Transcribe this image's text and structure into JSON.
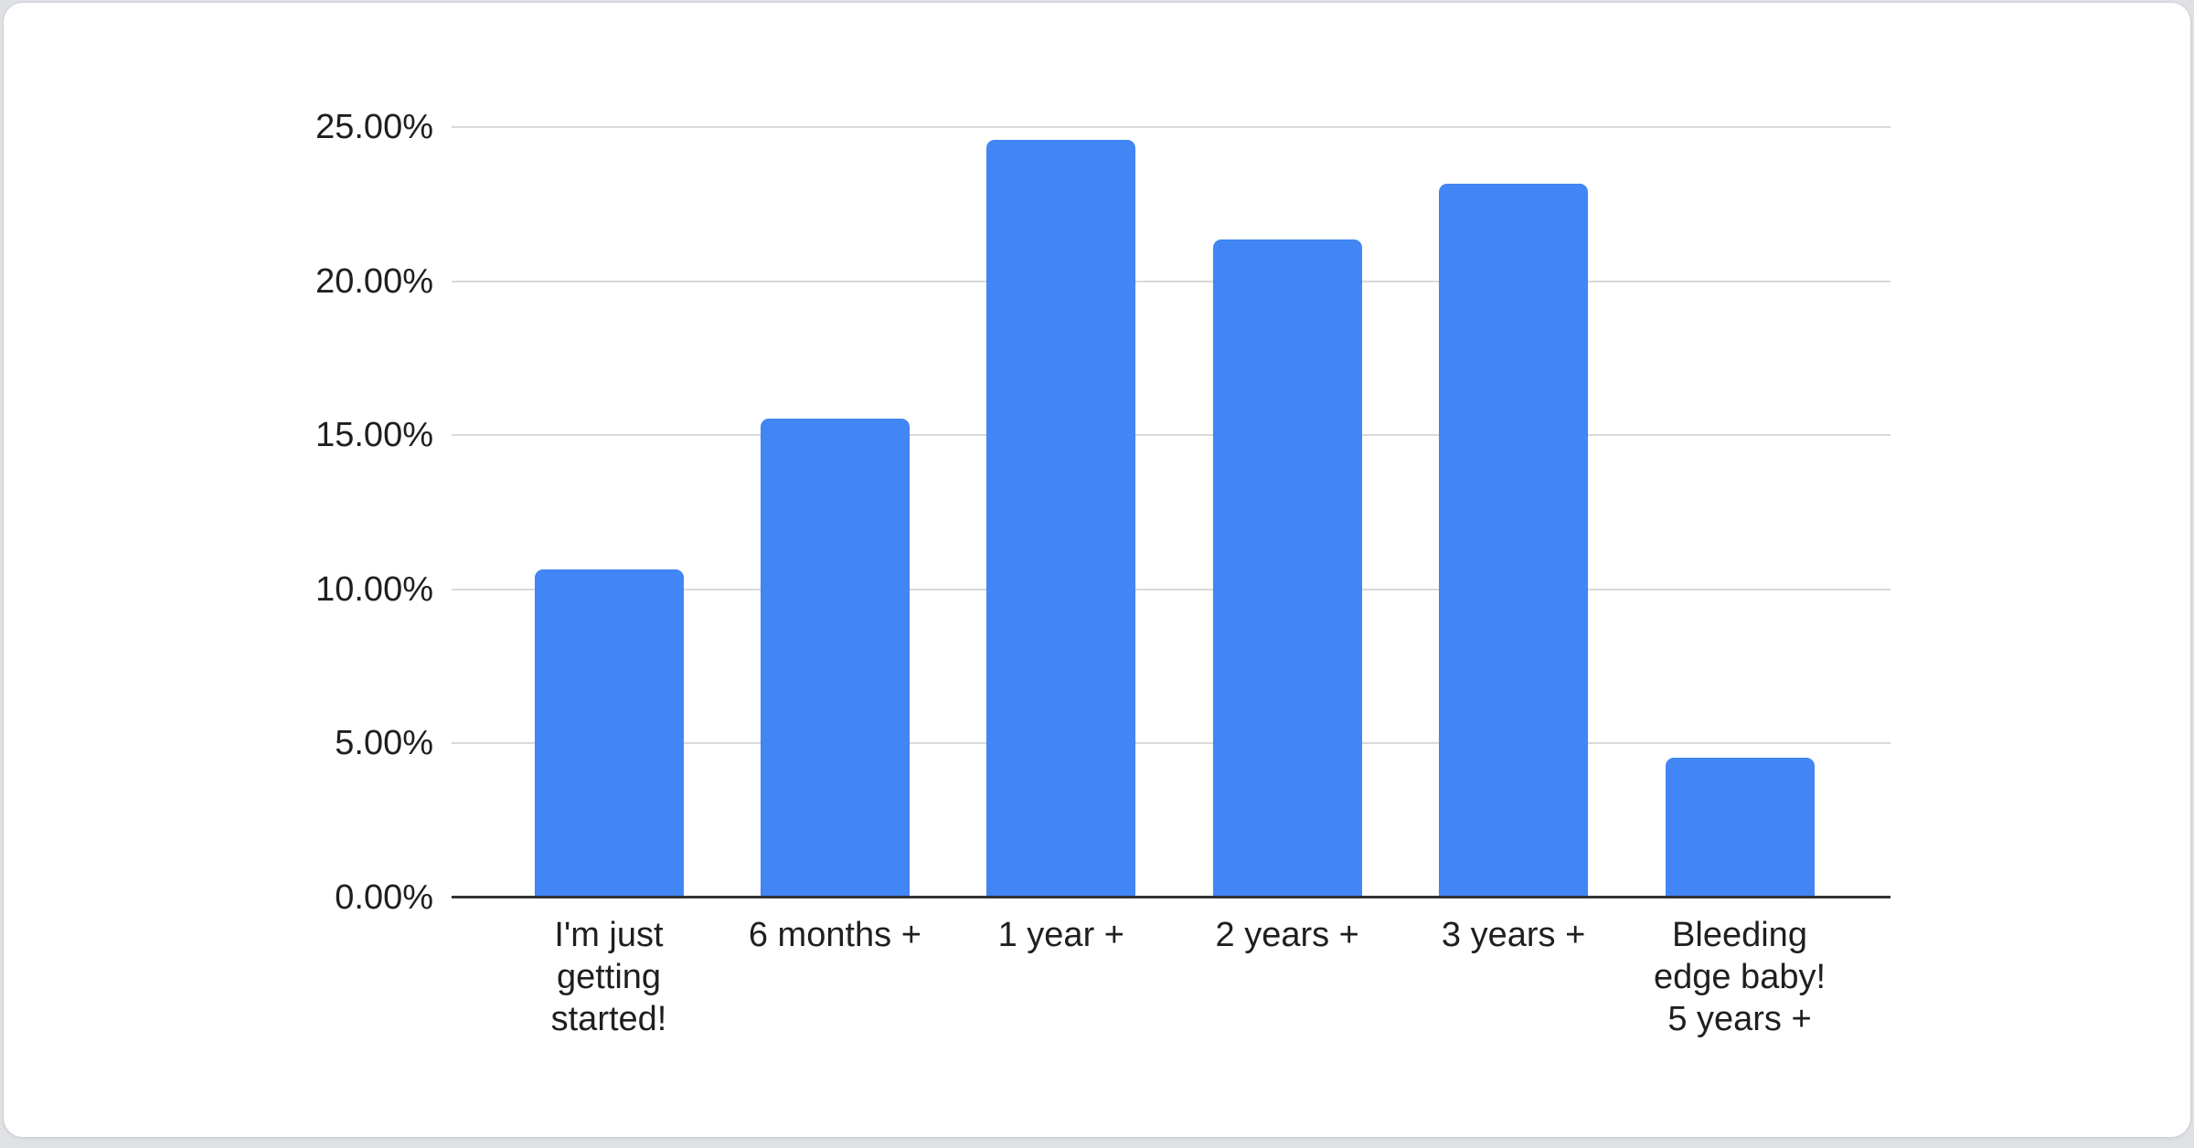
{
  "chart_data": {
    "type": "bar",
    "title": "",
    "xlabel": "",
    "ylabel": "",
    "categories": [
      "I'm just\ngetting\nstarted!",
      "6 months +",
      "1 year +",
      "2 years +",
      "3 years +",
      "Bleeding\nedge baby!\n5 years +"
    ],
    "values": [
      10.65,
      15.55,
      24.6,
      21.35,
      23.15,
      4.55
    ],
    "ylim": [
      0,
      25
    ],
    "ytick_step": 5,
    "ytick_labels": [
      "0.00%",
      "5.00%",
      "10.00%",
      "15.00%",
      "20.00%",
      "25.00%"
    ],
    "grid": true,
    "legend": false,
    "colors": {
      "bar": "#4285f4",
      "gridline": "#d9d9d9",
      "axis_line": "#333333",
      "tick_label": "#1f1f1f",
      "card_background": "#ffffff",
      "card_border": "#ccd0d5",
      "page_background": "#dfe1e5"
    }
  }
}
